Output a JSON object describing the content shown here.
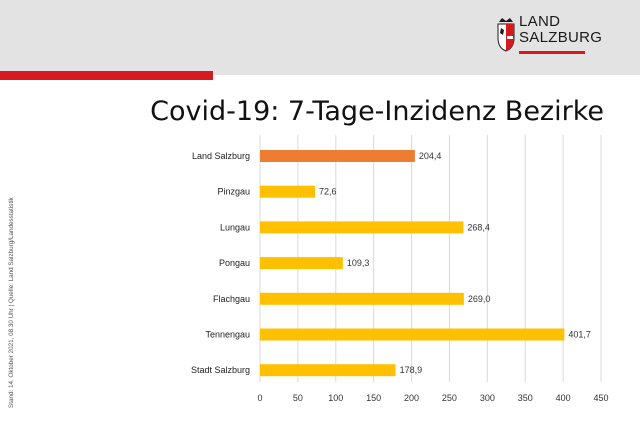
{
  "header": {
    "logo_line1": "LAND",
    "logo_line2": "SALZBURG"
  },
  "side_note": "Stand: 14. Oktober 2021, 08.30 Uhr | Quelle: Land Salzburg/Landesstatistik",
  "colors": {
    "highlight_bar": "#ed7d31",
    "bar": "#ffc000",
    "brand_red": "#d71920"
  },
  "chart_data": {
    "type": "bar",
    "orientation": "horizontal",
    "title": "Covid-19: 7-Tage-Inzidenz Bezirke",
    "categories": [
      "Land Salzburg",
      "Pinzgau",
      "Lungau",
      "Pongau",
      "Flachgau",
      "Tennengau",
      "Stadt Salzburg"
    ],
    "values": [
      204.4,
      72.6,
      268.4,
      109.3,
      269.0,
      401.7,
      178.9
    ],
    "value_labels": [
      "204,4",
      "72,6",
      "268,4",
      "109,3",
      "269,0",
      "401,7",
      "178,9"
    ],
    "highlight_index": 0,
    "xlim": [
      0,
      450
    ],
    "xticks": [
      0,
      50,
      100,
      150,
      200,
      250,
      300,
      350,
      400,
      450
    ],
    "grid": "vertical"
  }
}
